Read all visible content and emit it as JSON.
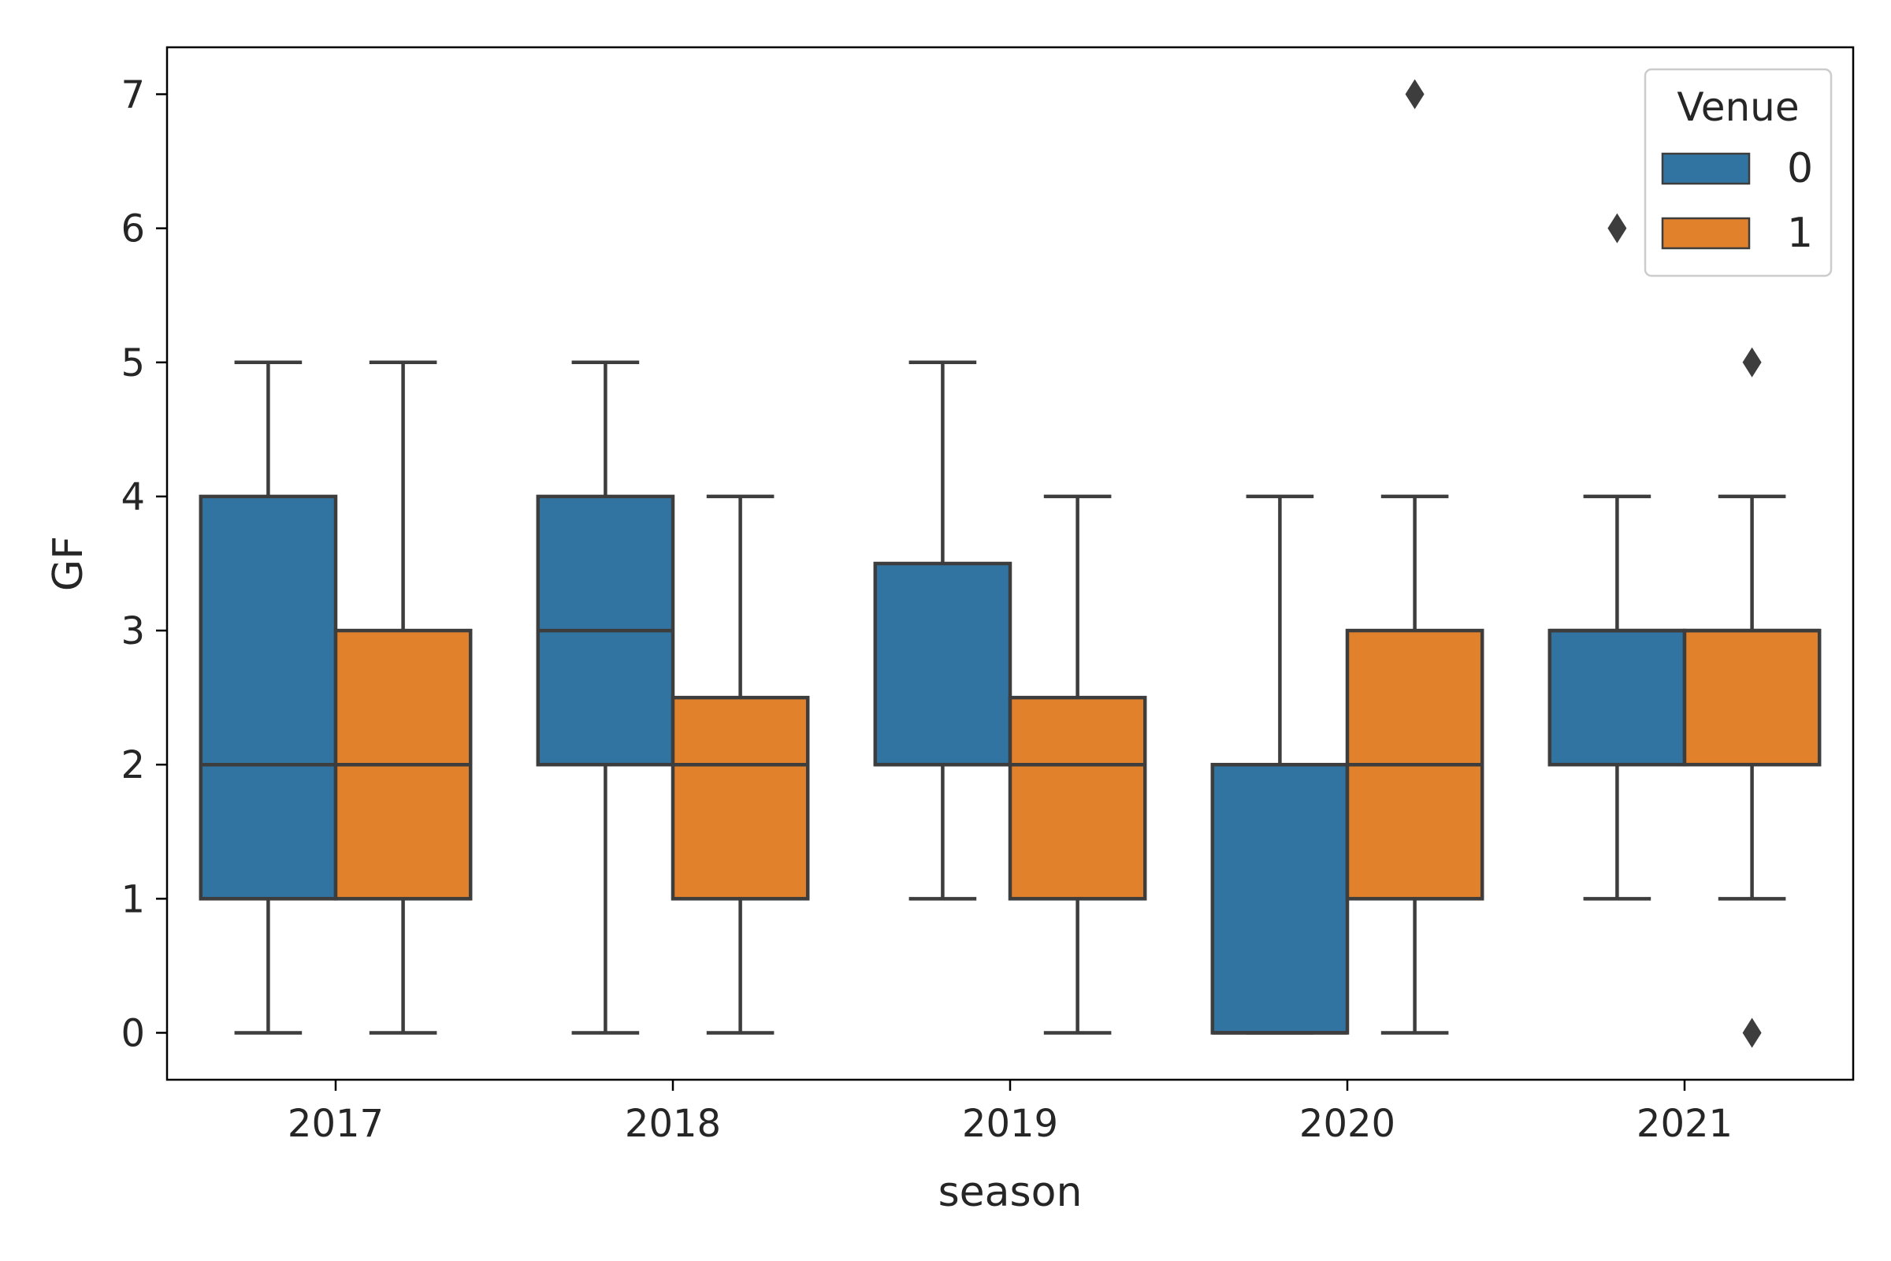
{
  "chart_data": {
    "type": "boxplot",
    "xlabel": "season",
    "ylabel": "GF",
    "categories": [
      "2017",
      "2018",
      "2019",
      "2020",
      "2021"
    ],
    "ylim": [
      -0.35,
      7.35
    ],
    "yticks": [
      0,
      1,
      2,
      3,
      4,
      5,
      6,
      7
    ],
    "grid": false,
    "legend": {
      "title": "Venue",
      "placement": "top-right",
      "entries": [
        {
          "label": "0",
          "color": "#3274a1"
        },
        {
          "label": "1",
          "color": "#e1812c"
        }
      ]
    },
    "series": [
      {
        "name": "0",
        "color": "#3274a1",
        "boxes": [
          {
            "whisker_low": 0,
            "q1": 1,
            "median": 2,
            "q3": 4,
            "whisker_high": 5,
            "outliers": []
          },
          {
            "whisker_low": 0,
            "q1": 2,
            "median": 3,
            "q3": 4,
            "whisker_high": 5,
            "outliers": []
          },
          {
            "whisker_low": 1,
            "q1": 2,
            "median": 2,
            "q3": 3.5,
            "whisker_high": 5,
            "outliers": []
          },
          {
            "whisker_low": 0,
            "q1": 0,
            "median": 0,
            "q3": 2,
            "whisker_high": 4,
            "outliers": []
          },
          {
            "whisker_low": 1,
            "q1": 2,
            "median": 3,
            "q3": 3,
            "whisker_high": 4,
            "outliers": [
              6
            ]
          }
        ]
      },
      {
        "name": "1",
        "color": "#e1812c",
        "boxes": [
          {
            "whisker_low": 0,
            "q1": 1,
            "median": 2,
            "q3": 3,
            "whisker_high": 5,
            "outliers": []
          },
          {
            "whisker_low": 0,
            "q1": 1,
            "median": 2,
            "q3": 2.5,
            "whisker_high": 4,
            "outliers": []
          },
          {
            "whisker_low": 0,
            "q1": 1,
            "median": 2,
            "q3": 2.5,
            "whisker_high": 4,
            "outliers": []
          },
          {
            "whisker_low": 0,
            "q1": 1,
            "median": 2,
            "q3": 3,
            "whisker_high": 4,
            "outliers": [
              7
            ]
          },
          {
            "whisker_low": 1,
            "q1": 2,
            "median": 3,
            "q3": 3,
            "whisker_high": 4,
            "outliers": [
              0,
              5
            ]
          }
        ]
      }
    ],
    "line_color": "#3d3d3d"
  }
}
